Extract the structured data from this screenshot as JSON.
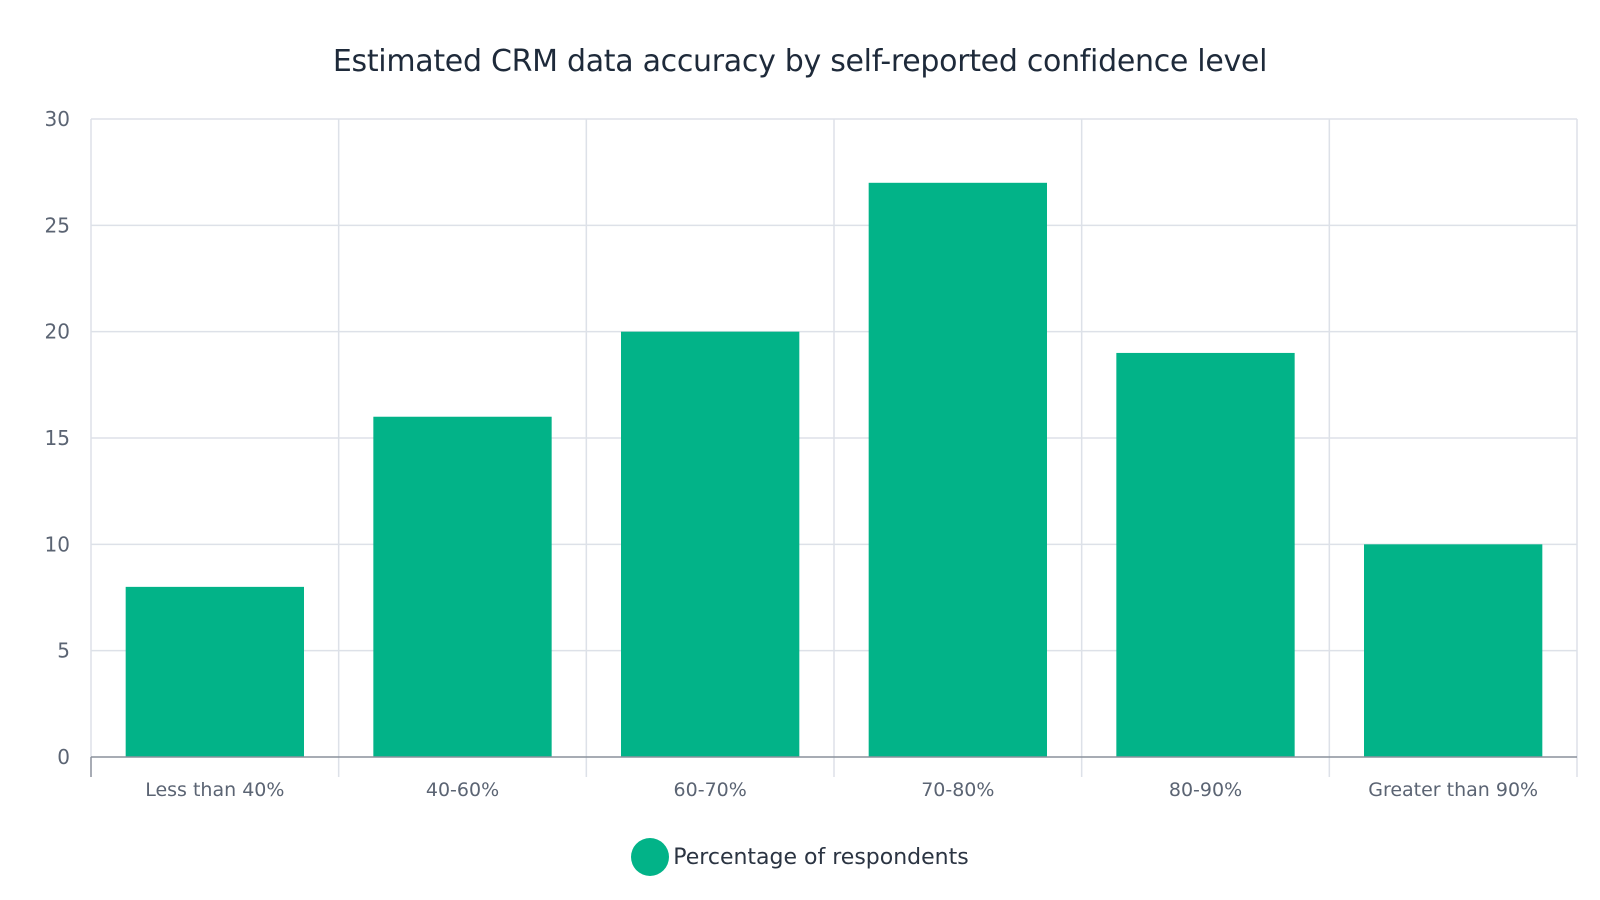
{
  "chart_data": {
    "type": "bar",
    "title": "Estimated CRM data accuracy by self-reported confidence level",
    "categories": [
      "Less than 40%",
      "40-60%",
      "60-70%",
      "70-80%",
      "80-90%",
      "Greater than 90%"
    ],
    "series": [
      {
        "name": "Percentage of respondents",
        "values": [
          8,
          16,
          20,
          27,
          19,
          10
        ],
        "color": "#02b388"
      }
    ],
    "ylim": [
      0,
      30
    ],
    "yticks": [
      0,
      5,
      10,
      15,
      20,
      25,
      30
    ],
    "grid": true,
    "legend_position": "bottom-center"
  },
  "colors": {
    "bar": "#02b388",
    "grid": "#dde1e8",
    "axis": "#8a919c"
  }
}
